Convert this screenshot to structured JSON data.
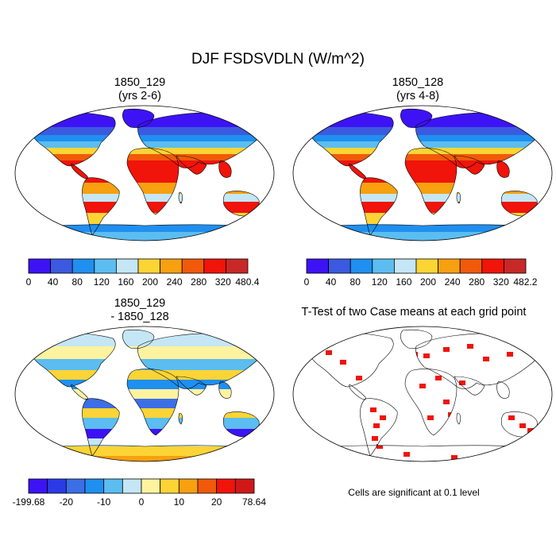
{
  "page": {
    "title": "DJF FSDSVDLN (W/m^2)",
    "note": "Cells are significant at 0.1 level"
  },
  "panels": {
    "case1": {
      "title_line1": "1850_129",
      "title_line2": "(yrs 2-6)"
    },
    "case2": {
      "title_line1": "1850_128",
      "title_line2": "(yrs 4-8)"
    },
    "diff": {
      "title_line1": "1850_129",
      "title_line2": "- 1850_128"
    },
    "ttest": {
      "title": "T-Test of two Case means at each grid point"
    }
  },
  "colorbars": {
    "case1": {
      "colors": [
        "#3d13f5",
        "#3c5ae0",
        "#1f8ff0",
        "#5bbdf0",
        "#c4e6f5",
        "#fcd435",
        "#f7a010",
        "#f05a0a",
        "#f0140a",
        "#c82828"
      ],
      "labels": [
        "0",
        "40",
        "80",
        "120",
        "160",
        "200",
        "240",
        "280",
        "320",
        "480.4"
      ]
    },
    "case2": {
      "colors": [
        "#3d13f5",
        "#3c5ae0",
        "#1f8ff0",
        "#5bbdf0",
        "#c4e6f5",
        "#fcd435",
        "#f7a010",
        "#f05a0a",
        "#f0140a",
        "#c82828"
      ],
      "labels": [
        "0",
        "40",
        "80",
        "120",
        "160",
        "200",
        "240",
        "280",
        "320",
        "482.2"
      ]
    },
    "diff": {
      "colors": [
        "#3d13f5",
        "#2a3be6",
        "#3c6ee6",
        "#1f8ff0",
        "#5bbdf0",
        "#c4e6f5",
        "#fff3a0",
        "#fcd435",
        "#f7a010",
        "#f05a0a",
        "#f0140a",
        "#d01818"
      ],
      "labels": [
        "-199.68",
        "-20",
        "-10",
        "0",
        "10",
        "20",
        "78.64"
      ]
    }
  }
}
